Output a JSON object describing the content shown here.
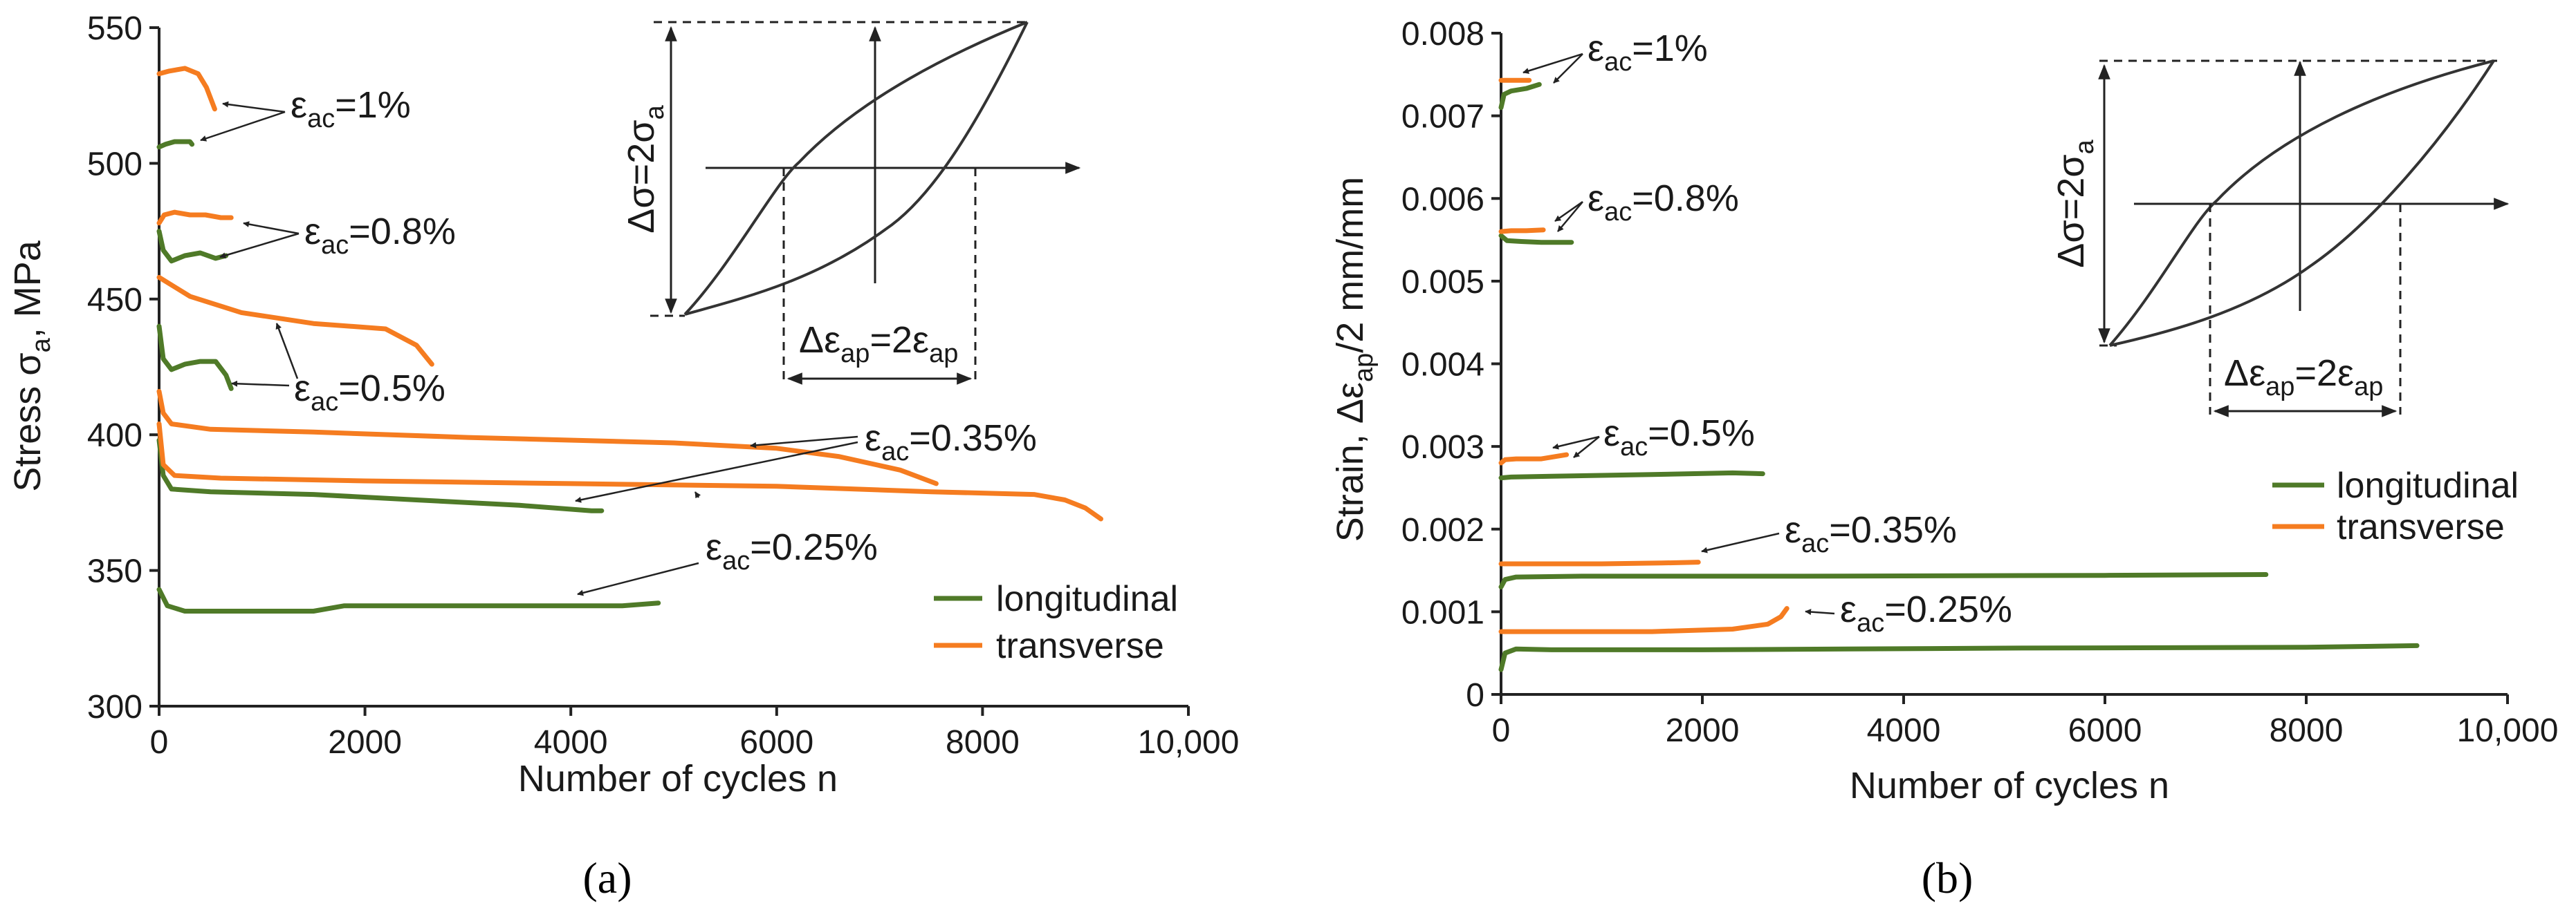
{
  "colors": {
    "longitudinal": "#4f7a28",
    "transverse": "#f57c20",
    "axis": "#222222"
  },
  "chart_data": [
    {
      "type": "line",
      "panel": "a",
      "caption": "(a)",
      "xlabel": "Number of cycles n",
      "ylabel_main": "Stress σ",
      "ylabel_sub": "a",
      "ylabel_unit": ", MPa",
      "xlim": [
        0,
        10000
      ],
      "ylim": [
        300,
        550
      ],
      "xticks": [
        0,
        2000,
        4000,
        6000,
        8000,
        10000
      ],
      "xtick_labels": [
        "0",
        "2000",
        "4000",
        "6000",
        "8000",
        "10,000"
      ],
      "yticks": [
        300,
        350,
        400,
        450,
        500,
        550
      ],
      "ytick_labels": [
        "300",
        "350",
        "400",
        "450",
        "500",
        "550"
      ],
      "legend": {
        "placement": "bottom-right",
        "entries": [
          {
            "label": "longitudinal",
            "key": "longitudinal"
          },
          {
            "label": "transverse",
            "key": "transverse"
          }
        ]
      },
      "series": [
        {
          "name": "longitudinal, εac=1%",
          "key": "longitudinal",
          "x": [
            0,
            60,
            150,
            300,
            320
          ],
          "y": [
            506,
            507,
            508,
            508,
            507
          ]
        },
        {
          "name": "transverse, εac=1%",
          "key": "transverse",
          "x": [
            0,
            100,
            250,
            380,
            460,
            540
          ],
          "y": [
            533,
            534,
            535,
            533,
            528,
            520
          ]
        },
        {
          "name": "longitudinal, εac=0.8%",
          "key": "longitudinal",
          "x": [
            0,
            40,
            120,
            250,
            400,
            550,
            650
          ],
          "y": [
            475,
            468,
            464,
            466,
            467,
            465,
            466
          ]
        },
        {
          "name": "transverse, εac=0.8%",
          "key": "transverse",
          "x": [
            0,
            50,
            150,
            300,
            450,
            600,
            700
          ],
          "y": [
            478,
            481,
            482,
            481,
            481,
            480,
            480
          ]
        },
        {
          "name": "longitudinal, εac=0.5%",
          "key": "longitudinal",
          "x": [
            0,
            40,
            120,
            250,
            400,
            550,
            650,
            700
          ],
          "y": [
            440,
            428,
            424,
            426,
            427,
            427,
            422,
            417
          ]
        },
        {
          "name": "transverse, εac=0.5%",
          "key": "transverse",
          "x": [
            0,
            300,
            800,
            1500,
            2200,
            2500,
            2650
          ],
          "y": [
            458,
            451,
            445,
            441,
            439,
            433,
            426
          ]
        },
        {
          "name": "longitudinal, εac=0.35%",
          "key": "longitudinal",
          "x": [
            0,
            40,
            120,
            500,
            1500,
            2500,
            3500,
            4200,
            4300
          ],
          "y": [
            398,
            385,
            380,
            379,
            378,
            376,
            374,
            372,
            372
          ]
        },
        {
          "name": "transverse, εac=0.35%",
          "key": "transverse",
          "x": [
            0,
            40,
            120,
            500,
            1500,
            3000,
            5000,
            6000,
            6600,
            7200,
            7550
          ],
          "y": [
            416,
            408,
            404,
            402,
            401,
            399,
            397,
            395,
            392,
            387,
            382
          ]
        },
        {
          "name": "longitudinal, εac=0.25%",
          "key": "longitudinal",
          "x": [
            0,
            80,
            250,
            800,
            1500,
            1800,
            2500,
            3500,
            4500,
            4850
          ],
          "y": [
            343,
            337,
            335,
            335,
            335,
            337,
            337,
            337,
            337,
            338
          ]
        },
        {
          "name": "transverse, εac=0.25%",
          "key": "transverse",
          "x": [
            0,
            40,
            150,
            600,
            2000,
            4000,
            6000,
            7500,
            8500,
            8800,
            9000,
            9150
          ],
          "y": [
            404,
            389,
            385,
            384,
            383,
            382,
            381,
            379,
            378,
            376,
            373,
            369
          ]
        }
      ],
      "annotations": [
        {
          "sym": "ε",
          "sub": "ac",
          "val": "=1%"
        },
        {
          "sym": "ε",
          "sub": "ac",
          "val": "=0.8%"
        },
        {
          "sym": "ε",
          "sub": "ac",
          "val": "=0.5%"
        },
        {
          "sym": "ε",
          "sub": "ac",
          "val": "=0.35%"
        },
        {
          "sym": "ε",
          "sub": "ac",
          "val": "=0.25%"
        }
      ],
      "inset": {
        "stress_label": "Δσ=2σ",
        "stress_sub": "a",
        "strain_label_1": "Δε",
        "strain_sub_1": "ap",
        "strain_mid": "=2ε",
        "strain_sub_2": "ap"
      }
    },
    {
      "type": "line",
      "panel": "b",
      "caption": "(b)",
      "xlabel": "Number of cycles n",
      "ylabel_main": "Strain, Δε",
      "ylabel_sub": "ap",
      "ylabel_unit": "/2 mm/mm",
      "xlim": [
        0,
        10000
      ],
      "ylim": [
        0,
        0.008
      ],
      "xticks": [
        0,
        2000,
        4000,
        6000,
        8000,
        10000
      ],
      "xtick_labels": [
        "0",
        "2000",
        "4000",
        "6000",
        "8000",
        "10,000"
      ],
      "yticks": [
        0,
        0.001,
        0.002,
        0.003,
        0.004,
        0.005,
        0.006,
        0.007,
        0.008
      ],
      "ytick_labels": [
        "0",
        "0.001",
        "0.002",
        "0.003",
        "0.004",
        "0.005",
        "0.006",
        "0.007",
        "0.008"
      ],
      "legend": {
        "placement": "right",
        "entries": [
          {
            "label": "longitudinal",
            "key": "longitudinal"
          },
          {
            "label": "transverse",
            "key": "transverse"
          }
        ]
      },
      "series": [
        {
          "name": "longitudinal, εac=1%",
          "key": "longitudinal",
          "x": [
            0,
            30,
            100,
            250,
            380
          ],
          "y": [
            0.0071,
            0.00726,
            0.0073,
            0.00733,
            0.00738
          ]
        },
        {
          "name": "transverse, εac=1%",
          "key": "transverse",
          "x": [
            0,
            150,
            280
          ],
          "y": [
            0.00743,
            0.00743,
            0.00743
          ]
        },
        {
          "name": "longitudinal, εac=0.8%",
          "key": "longitudinal",
          "x": [
            0,
            60,
            200,
            400,
            700
          ],
          "y": [
            0.00555,
            0.00549,
            0.00548,
            0.00547,
            0.00547
          ]
        },
        {
          "name": "transverse, εac=0.8%",
          "key": "transverse",
          "x": [
            0,
            100,
            250,
            420
          ],
          "y": [
            0.0056,
            0.00561,
            0.00561,
            0.00562
          ]
        },
        {
          "name": "longitudinal, εac=0.5%",
          "key": "longitudinal",
          "x": [
            0,
            100,
            500,
            1500,
            2300,
            2600
          ],
          "y": [
            0.00262,
            0.00263,
            0.00264,
            0.00266,
            0.00268,
            0.00267
          ]
        },
        {
          "name": "transverse, εac=0.5%",
          "key": "transverse",
          "x": [
            0,
            40,
            150,
            400,
            650
          ],
          "y": [
            0.0028,
            0.00284,
            0.00285,
            0.00285,
            0.0029
          ]
        },
        {
          "name": "longitudinal, εac=0.35%",
          "key": "longitudinal",
          "x": [
            0,
            40,
            150,
            800,
            3000,
            6000,
            7600
          ],
          "y": [
            0.0013,
            0.00139,
            0.00142,
            0.00143,
            0.00143,
            0.00144,
            0.00145
          ]
        },
        {
          "name": "transverse, εac=0.35%",
          "key": "transverse",
          "x": [
            0,
            300,
            1000,
            1600,
            1960
          ],
          "y": [
            0.00158,
            0.00158,
            0.00158,
            0.00159,
            0.0016
          ]
        },
        {
          "name": "longitudinal, εac=0.25%",
          "key": "longitudinal",
          "x": [
            0,
            40,
            150,
            500,
            2000,
            5000,
            8000,
            9100
          ],
          "y": [
            0.0003,
            0.0005,
            0.00055,
            0.00054,
            0.00054,
            0.00056,
            0.00057,
            0.00059
          ]
        },
        {
          "name": "transverse, εac=0.25%",
          "key": "transverse",
          "x": [
            0,
            500,
            1500,
            2300,
            2650,
            2780,
            2840
          ],
          "y": [
            0.00076,
            0.00076,
            0.00076,
            0.00079,
            0.00085,
            0.00094,
            0.00104
          ]
        }
      ],
      "annotations": [
        {
          "sym": "ε",
          "sub": "ac",
          "val": "=1%"
        },
        {
          "sym": "ε",
          "sub": "ac",
          "val": "=0.8%"
        },
        {
          "sym": "ε",
          "sub": "ac",
          "val": "=0.5%"
        },
        {
          "sym": "ε",
          "sub": "ac",
          "val": "=0.35%"
        },
        {
          "sym": "ε",
          "sub": "ac",
          "val": "=0.25%"
        }
      ],
      "inset": {
        "stress_label": "Δσ=2σ",
        "stress_sub": "a",
        "strain_label_1": "Δε",
        "strain_sub_1": "ap",
        "strain_mid": "=2ε",
        "strain_sub_2": "ap"
      }
    }
  ]
}
